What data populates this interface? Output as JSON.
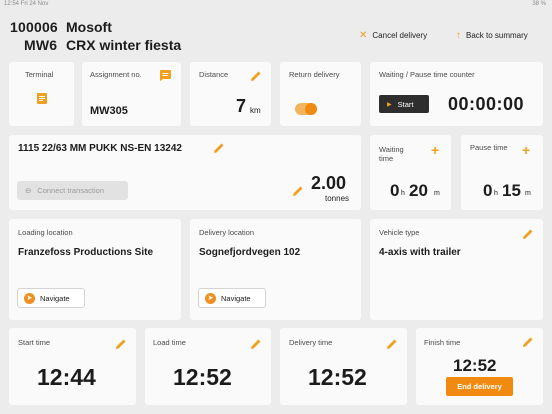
{
  "status_bar": {
    "left": "12:54  Fri 24 Nov",
    "right": "38 %"
  },
  "header": {
    "id1": "100006",
    "name1": "Mosoft",
    "id2": "MW6",
    "name2": "CRX winter fiesta",
    "cancel_label": "Cancel delivery",
    "back_label": "Back to summary"
  },
  "terminal": {
    "label": "Terminal"
  },
  "assignment": {
    "label": "Assignment no.",
    "value": "MW305"
  },
  "distance": {
    "label": "Distance",
    "value": "7",
    "unit": "km"
  },
  "return_delivery": {
    "label": "Return delivery",
    "enabled": true
  },
  "counter": {
    "label": "Waiting / Pause time counter",
    "start_label": "Start",
    "time": "00:00:00"
  },
  "product": {
    "name": "1115 22/63 MM PUKK NS-EN 13242",
    "connect_label": "Connect transaction",
    "quantity": "2.00",
    "unit": "tonnes"
  },
  "waiting": {
    "label_line1": "Waiting",
    "label_line2": "time",
    "hours": "0",
    "h": "h",
    "minutes": "20",
    "m": "m"
  },
  "pause": {
    "label": "Pause time",
    "hours": "0",
    "h": "h",
    "minutes": "15",
    "m": "m"
  },
  "loading": {
    "label": "Loading location",
    "value": "Franzefoss Productions Site",
    "nav_label": "Navigate"
  },
  "delivery": {
    "label": "Delivery location",
    "value": "Sognefjordvegen 102",
    "nav_label": "Navigate"
  },
  "vehicle": {
    "label": "Vehicle type",
    "value": "4-axis with trailer"
  },
  "times": {
    "start": {
      "label": "Start time",
      "value": "12:44"
    },
    "load": {
      "label": "Load time",
      "value": "12:52"
    },
    "delivery": {
      "label": "Delivery time",
      "value": "12:52"
    },
    "finish": {
      "label": "Finish time",
      "value": "12:52",
      "end_label": "End delivery"
    }
  },
  "colors": {
    "accent": "#f0a020",
    "dark_button": "#2e2e2e",
    "background": "#ececec",
    "card": "#fafafa"
  }
}
